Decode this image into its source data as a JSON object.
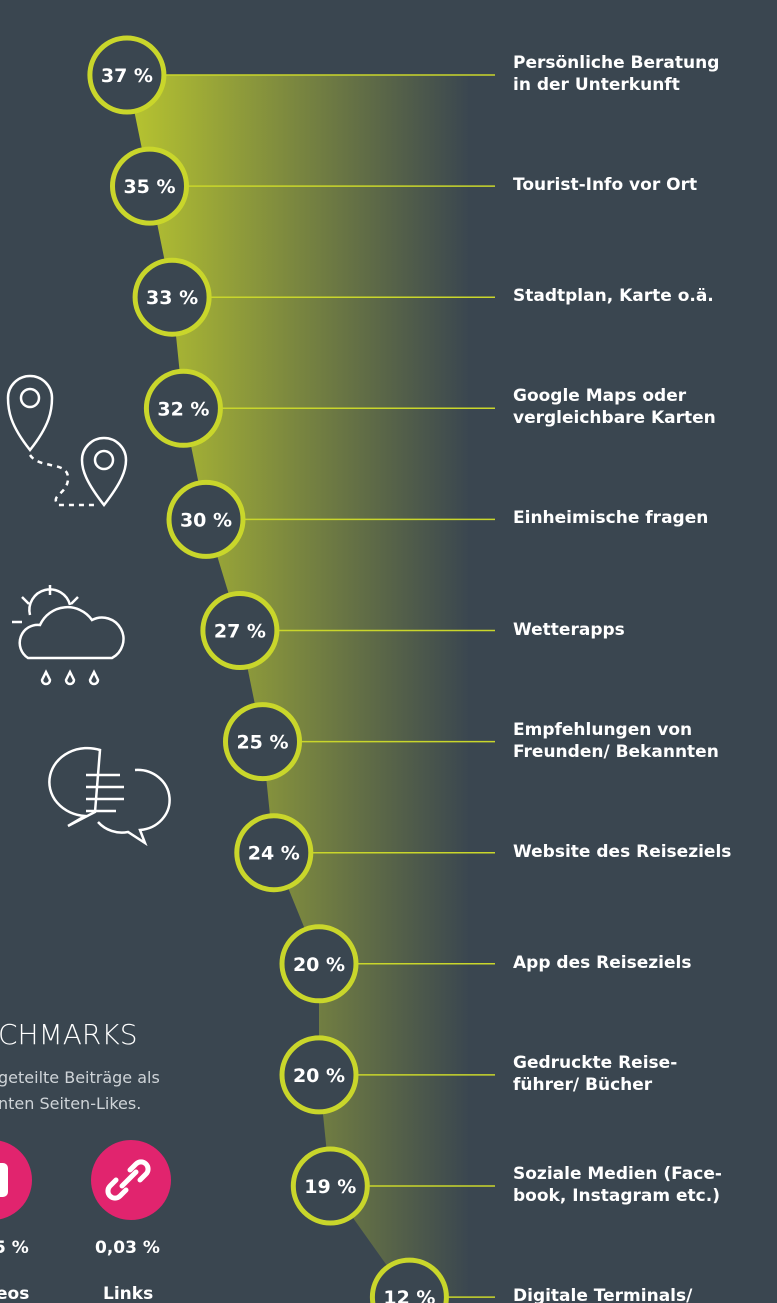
{
  "chart_data": {
    "type": "dot",
    "categories": [
      "Persönliche Beratung\nin der Unterkunft",
      "Tourist-Info vor Ort",
      "Stadtplan, Karte o.ä.",
      "Google Maps oder\nvergleichbare Karten",
      "Einheimische fragen",
      "Wetterapps",
      "Empfehlungen von\nFreunden/ Bekannten",
      "Website des Reiseziels",
      "App des Reiseziels",
      "Gedruckte Reise-\nführer/ Bücher",
      "Soziale Medien  (Face-\nbook, Instagram etc.)",
      "Digitale Terminals/"
    ],
    "values": [
      37,
      35,
      33,
      32,
      30,
      27,
      25,
      24,
      20,
      20,
      19,
      12
    ],
    "value_labels": [
      "37 %",
      "35 %",
      "33 %",
      "32 %",
      "30 %",
      "27 %",
      "25 %",
      "24 %",
      "20 %",
      "20 %",
      "19 %",
      "12 %"
    ],
    "color": "#c9d62b"
  },
  "benchmarks": {
    "title": "CHMARKS",
    "text": [
      "geteilte Beiträge als",
      "nten Seiten-Likes."
    ],
    "items": [
      {
        "value": "5 %",
        "label": "eos"
      },
      {
        "value": "0,03 %",
        "label": "Links"
      }
    ]
  }
}
